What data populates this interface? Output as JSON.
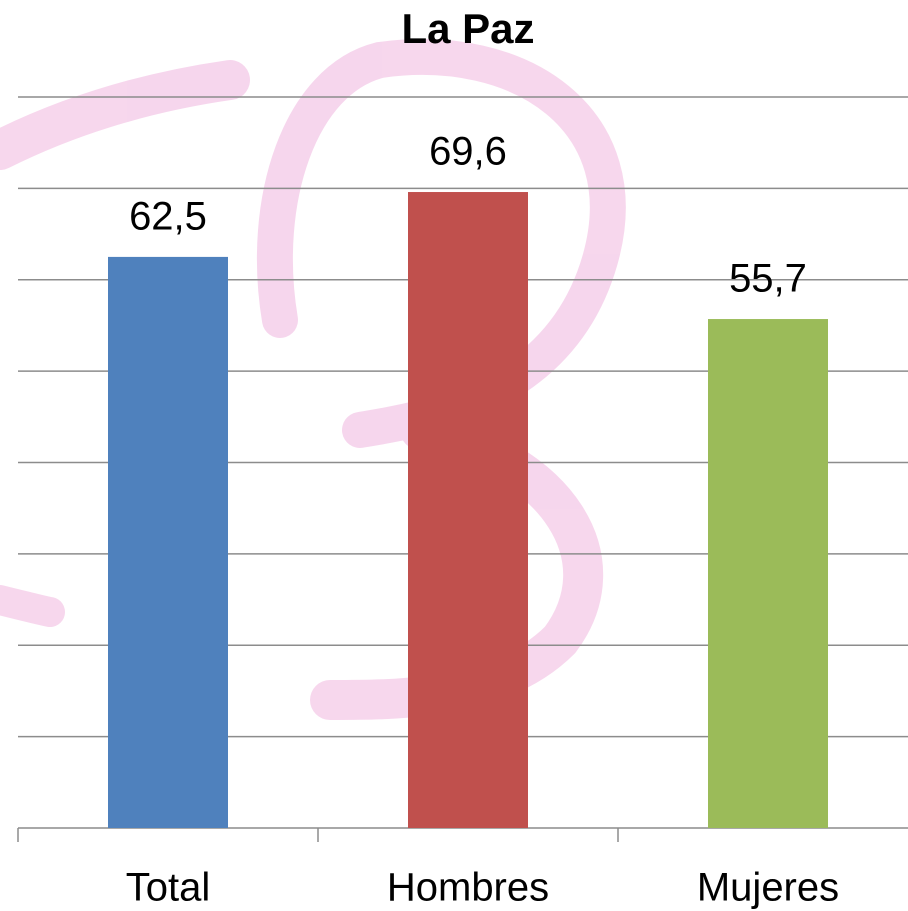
{
  "chart_data": {
    "type": "bar",
    "title": "La Paz",
    "categories": [
      "Total",
      "Hombres",
      "Mujeres"
    ],
    "values": [
      62.5,
      69.6,
      55.7
    ],
    "value_labels": [
      "62,5",
      "69,6",
      "55,7"
    ],
    "colors": [
      "#4f81bd",
      "#c0504d",
      "#9bbb59"
    ],
    "ylim": [
      0,
      80
    ],
    "yticks": [
      0,
      10,
      20,
      30,
      40,
      50,
      60,
      70,
      80
    ],
    "grid": true
  }
}
